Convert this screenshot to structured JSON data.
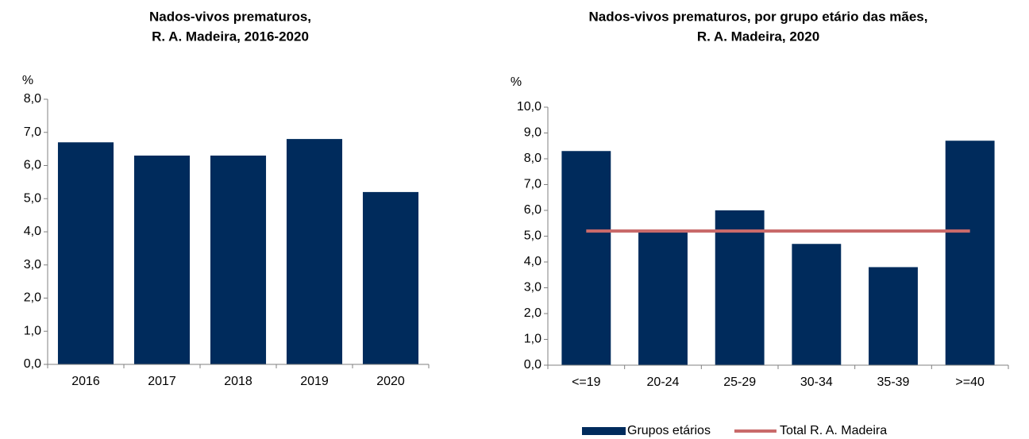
{
  "chart_data": [
    {
      "type": "bar",
      "title": [
        "Nados-vivos prematuros,",
        "R. A. Madeira, 2016-2020"
      ],
      "y_label": "%",
      "categories": [
        "2016",
        "2017",
        "2018",
        "2019",
        "2020"
      ],
      "series": [
        {
          "values": [
            6.7,
            6.3,
            6.3,
            6.8,
            5.2
          ],
          "color": "#002b5c"
        }
      ],
      "ylim": [
        0,
        8
      ],
      "yticks": [
        {
          "value": 0,
          "label": "0,0"
        },
        {
          "value": 1,
          "label": "1,0"
        },
        {
          "value": 2,
          "label": "2,0"
        },
        {
          "value": 3,
          "label": "3,0"
        },
        {
          "value": 4,
          "label": "4,0"
        },
        {
          "value": 5,
          "label": "5,0"
        },
        {
          "value": 6,
          "label": "6,0"
        },
        {
          "value": 7,
          "label": "7,0"
        },
        {
          "value": 8,
          "label": "8,0"
        }
      ]
    },
    {
      "type": "bar",
      "title": [
        "Nados-vivos prematuros, por grupo etário das mães,",
        "R. A. Madeira, 2020"
      ],
      "y_label": "%",
      "categories": [
        "<=19",
        "20-24",
        "25-29",
        "30-34",
        "35-39",
        ">=40"
      ],
      "series": [
        {
          "name": "Grupos etários",
          "values": [
            8.3,
            5.2,
            6.0,
            4.7,
            3.8,
            8.7
          ],
          "color": "#002b5c"
        },
        {
          "name": "Total R. A. Madeira",
          "type": "line",
          "values": [
            5.2,
            5.2,
            5.2,
            5.2,
            5.2,
            5.2
          ],
          "color": "#c96a6a"
        }
      ],
      "ylim": [
        0,
        10
      ],
      "yticks": [
        {
          "value": 0,
          "label": "0,0"
        },
        {
          "value": 1,
          "label": "1,0"
        },
        {
          "value": 2,
          "label": "2,0"
        },
        {
          "value": 3,
          "label": "3,0"
        },
        {
          "value": 4,
          "label": "4,0"
        },
        {
          "value": 5,
          "label": "5,0"
        },
        {
          "value": 6,
          "label": "6,0"
        },
        {
          "value": 7,
          "label": "7,0"
        },
        {
          "value": 8,
          "label": "8,0"
        },
        {
          "value": 9,
          "label": "9,0"
        },
        {
          "value": 10,
          "label": "10,0"
        }
      ],
      "legend": "bottom"
    }
  ]
}
